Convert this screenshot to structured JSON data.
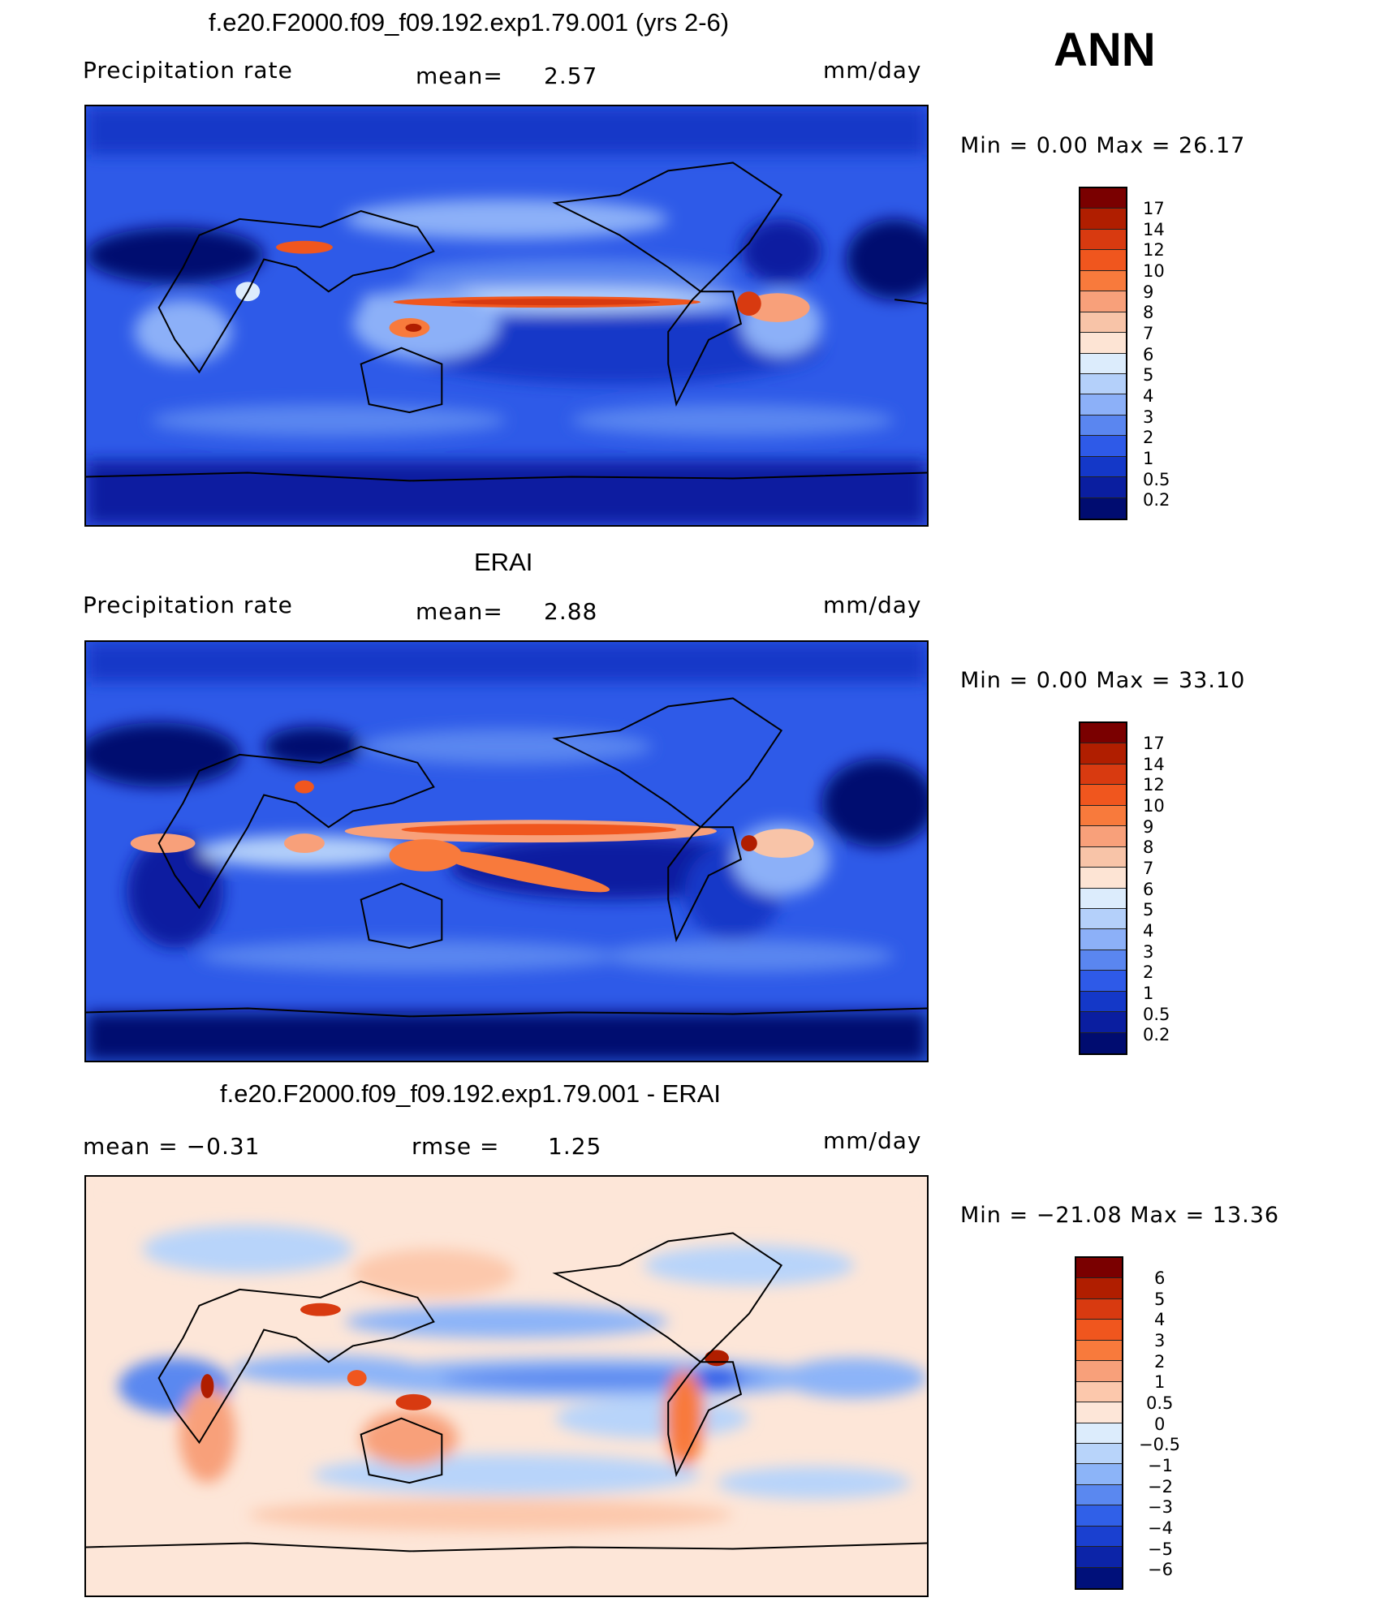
{
  "season": "ANN",
  "panels": [
    {
      "title": "f.e20.F2000.f09_f09.192.exp1.79.001 (yrs 2-6)",
      "left_label": "Precipitation  rate",
      "center_label": "mean=",
      "center_value": "2.57",
      "units": "mm/day",
      "min_max": "Min  =     0.00  Max  =    26.17",
      "colorbar_ticks": [
        "17",
        "14",
        "12",
        "10",
        "9",
        "8",
        "7",
        "6",
        "5",
        "4",
        "3",
        "2",
        "1",
        "0.5",
        "0.2"
      ]
    },
    {
      "title": "ERAI",
      "left_label": "Precipitation  rate",
      "center_label": "mean=",
      "center_value": "2.88",
      "units": "mm/day",
      "min_max": "Min  =     0.00  Max  =    33.10",
      "colorbar_ticks": [
        "17",
        "14",
        "12",
        "10",
        "9",
        "8",
        "7",
        "6",
        "5",
        "4",
        "3",
        "2",
        "1",
        "0.5",
        "0.2"
      ]
    },
    {
      "title": "f.e20.F2000.f09_f09.192.exp1.79.001 - ERAI",
      "left_label": "mean  =    −0.31",
      "center_label": "rmse  =",
      "center_value": "1.25",
      "units": "mm/day",
      "min_max": "Min  =  −21.08  Max  =    13.36",
      "colorbar_ticks": [
        "6",
        "5",
        "4",
        "3",
        "2",
        "1",
        "0.5",
        "0",
        "−0.5",
        "−1",
        "−2",
        "−3",
        "−4",
        "−5",
        "−6"
      ]
    }
  ],
  "colors": {
    "precip_scale": [
      "#7a0000",
      "#b01e00",
      "#d83a10",
      "#f0561e",
      "#f87a3c",
      "#f8a07a",
      "#f8c4a8",
      "#fde4d4",
      "#dcecfc",
      "#b4d0fa",
      "#8cb0f8",
      "#5a86f0",
      "#2e5ae8",
      "#1438c8",
      "#0a1ea0",
      "#000c70"
    ],
    "diff_scale": [
      "#7a0000",
      "#b01e00",
      "#d83a10",
      "#f0561e",
      "#f87a3c",
      "#f8a07a",
      "#fcc8ac",
      "#fde6d8",
      "#dcecfc",
      "#b8d4fa",
      "#8cb4f8",
      "#5a88f0",
      "#3060e8",
      "#1a40d0",
      "#0c24a8",
      "#00107a"
    ]
  }
}
